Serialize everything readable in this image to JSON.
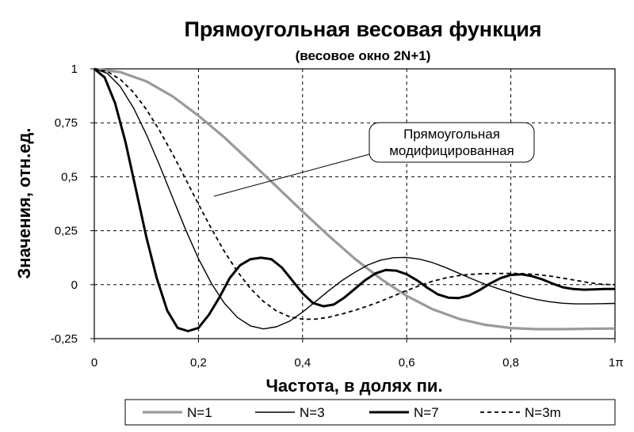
{
  "chart_data": {
    "type": "line",
    "title": "Прямоугольная весовая функция",
    "subtitle": "(весовое окно 2N+1)",
    "xlabel": "Частота, в долях пи.",
    "ylabel": "Значения, отн.ед.",
    "xlim": [
      0,
      1
    ],
    "ylim": [
      -0.25,
      1
    ],
    "x_ticks": [
      0,
      0.2,
      0.4,
      0.6,
      0.8,
      1
    ],
    "x_tick_labels": [
      "0",
      "0,2",
      "0,4",
      "0,6",
      "0,8",
      "1π"
    ],
    "y_ticks": [
      -0.25,
      0,
      0.25,
      0.5,
      0.75,
      1
    ],
    "y_tick_labels": [
      "-0,25",
      "0",
      "0,25",
      "0,5",
      "0,75",
      "1"
    ],
    "grid": true,
    "legend_position": "bottom",
    "annotation": {
      "lines": [
        "Прямоугольная",
        "модифицированная"
      ],
      "points_to": [
        0.23,
        0.41
      ]
    },
    "series": [
      {
        "name": "N=1",
        "color": "#9a9a9a",
        "style": "solid-thick-gray",
        "x": [
          0,
          0.05,
          0.1,
          0.15,
          0.2,
          0.25,
          0.3,
          0.35,
          0.4,
          0.45,
          0.5,
          0.55,
          0.6,
          0.65,
          0.7,
          0.75,
          0.8,
          0.85,
          0.9,
          0.95,
          1
        ],
        "y": [
          1,
          0.985,
          0.942,
          0.873,
          0.783,
          0.682,
          0.569,
          0.455,
          0.339,
          0.227,
          0.121,
          0.027,
          -0.052,
          -0.114,
          -0.158,
          -0.186,
          -0.201,
          -0.206,
          -0.206,
          -0.204,
          -0.203
        ]
      },
      {
        "name": "N=3",
        "color": "#000000",
        "style": "solid-thin",
        "x": [
          0,
          0.025,
          0.05,
          0.075,
          0.1,
          0.125,
          0.15,
          0.175,
          0.2,
          0.225,
          0.25,
          0.275,
          0.3,
          0.325,
          0.35,
          0.375,
          0.4,
          0.425,
          0.45,
          0.475,
          0.5,
          0.525,
          0.55,
          0.575,
          0.6,
          0.625,
          0.65,
          0.675,
          0.7,
          0.725,
          0.75,
          0.775,
          0.8,
          0.825,
          0.85,
          0.875,
          0.9,
          0.925,
          0.95,
          0.975,
          1
        ],
        "y": [
          1,
          0.979,
          0.918,
          0.82,
          0.696,
          0.555,
          0.405,
          0.257,
          0.121,
          0.006,
          -0.087,
          -0.152,
          -0.191,
          -0.205,
          -0.195,
          -0.169,
          -0.127,
          -0.078,
          -0.028,
          0.018,
          0.057,
          0.091,
          0.114,
          0.125,
          0.126,
          0.118,
          0.102,
          0.079,
          0.053,
          0.027,
          0.003,
          -0.018,
          -0.037,
          -0.055,
          -0.069,
          -0.079,
          -0.086,
          -0.089,
          -0.089,
          -0.088,
          -0.087
        ]
      },
      {
        "name": "N=7",
        "color": "#000000",
        "style": "solid-thick",
        "x": [
          0,
          0.02,
          0.04,
          0.06,
          0.08,
          0.1,
          0.12,
          0.14,
          0.16,
          0.18,
          0.2,
          0.22,
          0.24,
          0.26,
          0.28,
          0.3,
          0.32,
          0.34,
          0.36,
          0.38,
          0.4,
          0.42,
          0.44,
          0.46,
          0.48,
          0.5,
          0.52,
          0.54,
          0.56,
          0.58,
          0.6,
          0.62,
          0.64,
          0.66,
          0.68,
          0.7,
          0.72,
          0.74,
          0.76,
          0.78,
          0.8,
          0.82,
          0.84,
          0.86,
          0.88,
          0.9,
          0.92,
          0.94,
          0.96,
          0.98,
          1
        ],
        "y": [
          1,
          0.96,
          0.84,
          0.66,
          0.44,
          0.22,
          0.03,
          -0.12,
          -0.2,
          -0.215,
          -0.2,
          -0.14,
          -0.06,
          0.03,
          0.09,
          0.118,
          0.125,
          0.118,
          0.08,
          0.02,
          -0.04,
          -0.085,
          -0.1,
          -0.092,
          -0.06,
          -0.02,
          0.02,
          0.052,
          0.068,
          0.065,
          0.048,
          0.02,
          -0.015,
          -0.045,
          -0.06,
          -0.062,
          -0.05,
          -0.025,
          0.005,
          0.03,
          0.045,
          0.048,
          0.04,
          0.025,
          0.005,
          -0.012,
          -0.02,
          -0.023,
          -0.022,
          -0.02,
          -0.02
        ]
      },
      {
        "name": "N=3m",
        "color": "#000000",
        "style": "dashed",
        "x": [
          0,
          0.025,
          0.05,
          0.075,
          0.1,
          0.125,
          0.15,
          0.175,
          0.2,
          0.225,
          0.25,
          0.275,
          0.3,
          0.325,
          0.35,
          0.375,
          0.4,
          0.425,
          0.45,
          0.475,
          0.5,
          0.525,
          0.55,
          0.575,
          0.6,
          0.625,
          0.65,
          0.675,
          0.7,
          0.725,
          0.75,
          0.775,
          0.8,
          0.825,
          0.85,
          0.875,
          0.9,
          0.925,
          0.95,
          0.975,
          1
        ],
        "y": [
          1,
          0.988,
          0.951,
          0.892,
          0.812,
          0.716,
          0.607,
          0.491,
          0.373,
          0.259,
          0.153,
          0.06,
          -0.018,
          -0.078,
          -0.122,
          -0.149,
          -0.16,
          -0.16,
          -0.151,
          -0.136,
          -0.119,
          -0.099,
          -0.077,
          -0.052,
          -0.027,
          -0.004,
          0.016,
          0.031,
          0.042,
          0.048,
          0.051,
          0.052,
          0.052,
          0.051,
          0.047,
          0.04,
          0.03,
          0.02,
          0.009,
          0.002,
          0
        ]
      }
    ]
  }
}
